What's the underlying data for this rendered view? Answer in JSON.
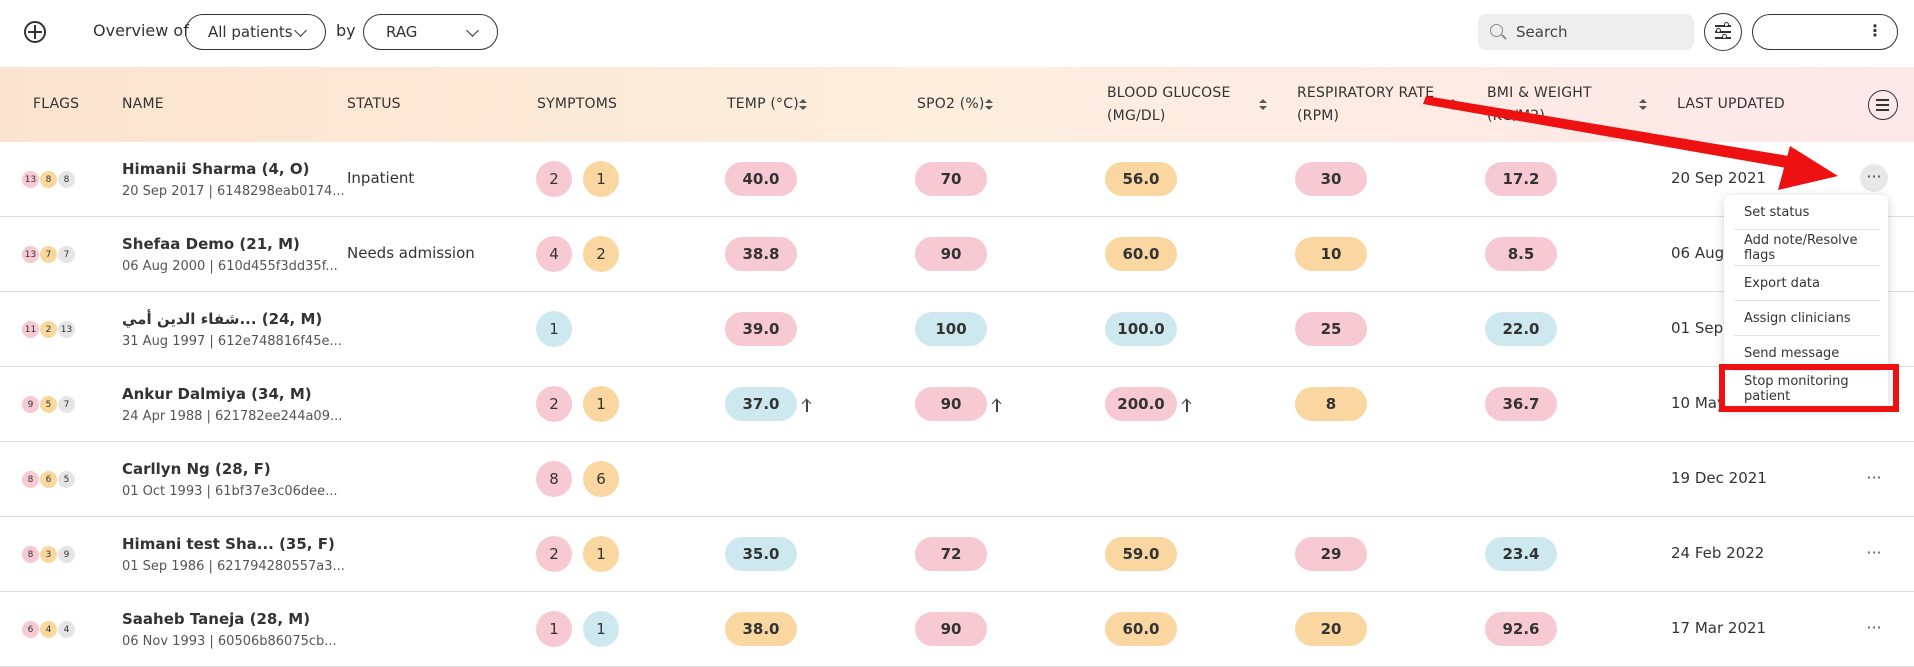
{
  "header": {
    "overview_label": "Overview of",
    "patients_select": "All patients",
    "by_label": "by",
    "group_select": "RAG",
    "search_placeholder": "Search",
    "user_menu": "⋮"
  },
  "columns": [
    {
      "label": "FLAGS",
      "sortable": false
    },
    {
      "label": "NAME",
      "sortable": false
    },
    {
      "label": "STATUS",
      "sortable": false
    },
    {
      "label": "SYMPTOMS",
      "sortable": false
    },
    {
      "label": "TEMP (°C)",
      "sortable": true
    },
    {
      "label": "SPO2 (%)",
      "sortable": true
    },
    {
      "label": "BLOOD GLUCOSE",
      "label2": "(MG/DL)",
      "sortable": true
    },
    {
      "label": "RESPIRATORY RATE",
      "label2": "(RPM)",
      "sortable": true
    },
    {
      "label": "BMI & WEIGHT",
      "label2": "(KG/M2)",
      "sortable": true
    },
    {
      "label": "LAST UPDATED",
      "sortable": false
    }
  ],
  "rows": [
    {
      "flags": [
        "13",
        "8",
        "8"
      ],
      "name": "Himanii Sharma (4, O)",
      "sub": "20 Sep 2017 | 6148298eab0174...",
      "status": "Inpatient",
      "symptoms": [
        [
          "2",
          "red"
        ],
        [
          "1",
          "amber"
        ]
      ],
      "temp": [
        "40.0",
        "red"
      ],
      "spo2": [
        "70",
        "red"
      ],
      "glucose": [
        "56.0",
        "amber"
      ],
      "resp": [
        "30",
        "red"
      ],
      "bmi": [
        "17.2",
        "red"
      ],
      "updated": "20 Sep 2021"
    },
    {
      "flags": [
        "13",
        "7",
        "7"
      ],
      "name": "Shefaa Demo (21, M)",
      "sub": "06 Aug 2000 | 610d455f3dd35f...",
      "status": "Needs admission",
      "symptoms": [
        [
          "4",
          "red"
        ],
        [
          "2",
          "amber"
        ]
      ],
      "temp": [
        "38.8",
        "red"
      ],
      "spo2": [
        "90",
        "red"
      ],
      "glucose": [
        "60.0",
        "amber"
      ],
      "resp": [
        "10",
        "amber"
      ],
      "bmi": [
        "8.5",
        "red"
      ],
      "updated": "06 Aug"
    },
    {
      "flags": [
        "11",
        "2",
        "13"
      ],
      "name": "شفاء الدين أمي... (24, M)",
      "sub": "31 Aug 1997 | 612e748816f45e...",
      "status": "",
      "symptoms": [
        [
          "1",
          "blue"
        ]
      ],
      "temp": [
        "39.0",
        "red"
      ],
      "spo2": [
        "100",
        "blue"
      ],
      "glucose": [
        "100.0",
        "blue"
      ],
      "resp": [
        "25",
        "red"
      ],
      "bmi": [
        "22.0",
        "blue"
      ],
      "updated": "01 Sep"
    },
    {
      "flags": [
        "9",
        "5",
        "7"
      ],
      "name": "Ankur Dalmiya (34, M)",
      "sub": "24 Apr 1988 | 621782ee244a09...",
      "status": "",
      "symptoms": [
        [
          "2",
          "red"
        ],
        [
          "1",
          "amber"
        ]
      ],
      "temp": [
        "37.0",
        "blue"
      ],
      "spo2": [
        "90",
        "red"
      ],
      "glucose": [
        "200.0",
        "red"
      ],
      "resp": [
        "8",
        "amber"
      ],
      "bmi": [
        "36.7",
        "red"
      ],
      "updated": "10 May",
      "arrows": true
    },
    {
      "flags": [
        "8",
        "6",
        "5"
      ],
      "name": "Carllyn Ng (28, F)",
      "sub": "01 Oct 1993 | 61bf37e3c06dee...",
      "status": "",
      "symptoms": [
        [
          "8",
          "red"
        ],
        [
          "6",
          "amber"
        ]
      ],
      "temp": null,
      "spo2": null,
      "glucose": null,
      "resp": null,
      "bmi": null,
      "updated": "19 Dec 2021"
    },
    {
      "flags": [
        "8",
        "3",
        "9"
      ],
      "name": "Himani test Sha... (35, F)",
      "sub": "01 Sep 1986 | 621794280557a3...",
      "status": "",
      "symptoms": [
        [
          "2",
          "red"
        ],
        [
          "1",
          "amber"
        ]
      ],
      "temp": [
        "35.0",
        "blue"
      ],
      "spo2": [
        "72",
        "red"
      ],
      "glucose": [
        "59.0",
        "amber"
      ],
      "resp": [
        "29",
        "red"
      ],
      "bmi": [
        "23.4",
        "blue"
      ],
      "updated": "24 Feb 2022"
    },
    {
      "flags": [
        "6",
        "4",
        "4"
      ],
      "name": "Saaheb Taneja (28, M)",
      "sub": "06 Nov 1993 | 60506b86075cb...",
      "status": "",
      "symptoms": [
        [
          "1",
          "red"
        ],
        [
          "1",
          "blue"
        ]
      ],
      "temp": [
        "38.0",
        "amber"
      ],
      "spo2": [
        "90",
        "red"
      ],
      "glucose": [
        "60.0",
        "amber"
      ],
      "resp": [
        "20",
        "amber"
      ],
      "bmi": [
        "92.6",
        "red"
      ],
      "updated": "17 Mar 2021"
    }
  ],
  "row_menu": {
    "dots": "···",
    "items": [
      "Set status",
      "Add note/Resolve flags",
      "Export data",
      "Assign clinicians",
      "Send message",
      "Stop monitoring patient"
    ]
  },
  "colors": {
    "red": "#f7c9d2",
    "amber": "#fad7a0",
    "blue": "#cde9ef",
    "annotation": "#ee1111"
  }
}
